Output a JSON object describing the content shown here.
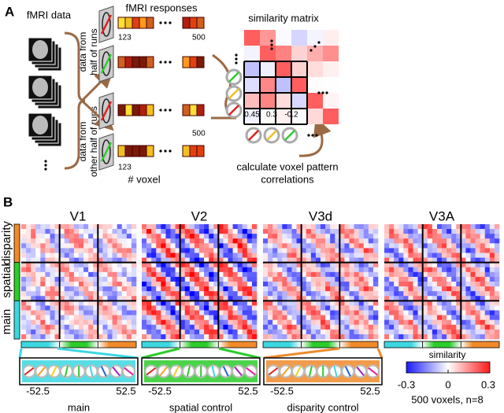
{
  "panel_a": {
    "label": "A",
    "fmri_data": "fMRI data",
    "fmri_responses": "fMRI responses",
    "half_runs": [
      "data from",
      "half of runs"
    ],
    "other_half_runs": [
      "data from",
      "other half of runs"
    ],
    "voxel_start": [
      "123",
      "123"
    ],
    "voxel_end": [
      "500",
      "500"
    ],
    "voxel_axis": "# voxel",
    "similarity_matrix": "similarity matrix",
    "correlations": [
      "0.45",
      "0.3",
      "-0.2"
    ],
    "caption": [
      "calculate voxel pattern",
      "correlations"
    ]
  },
  "panel_b": {
    "label": "B",
    "areas": [
      "V1",
      "V2",
      "V3d",
      "V3A"
    ],
    "row_labels": [
      "disparity",
      "spatial",
      "main"
    ],
    "conditions": [
      {
        "name": "main",
        "min": "-52.5",
        "max": "52.5"
      },
      {
        "name": "spatial control",
        "min": "-52.5",
        "max": "52.5"
      },
      {
        "name": "disparity control",
        "min": "-52.5",
        "max": "52.5"
      }
    ],
    "colorbar": {
      "title": "similarity",
      "ticks": [
        "-0.3",
        "0",
        "0.3"
      ]
    },
    "note": "500 voxels, n=8"
  }
}
